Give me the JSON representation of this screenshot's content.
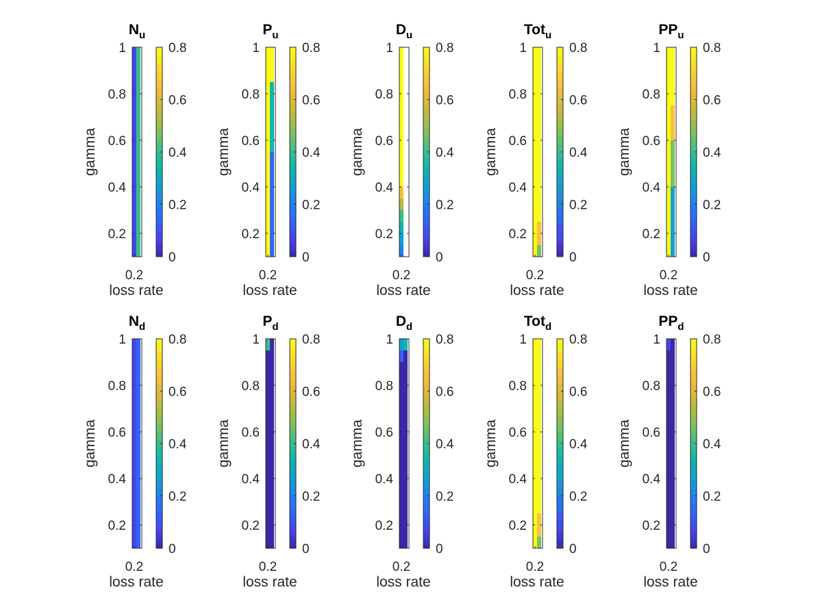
{
  "colormap": [
    "#3e26a8",
    "#4743f1",
    "#3263fd",
    "#1e82f1",
    "#12a0d3",
    "#0bb6b1",
    "#34c08b",
    "#78c25e",
    "#b3bd3f",
    "#e0b83b",
    "#fcc13b",
    "#f7e025",
    "#f9fb15"
  ],
  "chart_data": [
    {
      "type": "heatmap",
      "title_main": "N",
      "title_sub": "u",
      "xlabel": "loss rate",
      "ylabel": "gamma",
      "x_ticks": [
        "0.2"
      ],
      "y_ticks": [
        "0.2",
        "0.4",
        "0.6",
        "0.8",
        "1"
      ],
      "colorbar_ticks": [
        "0",
        "0.2",
        "0.4",
        "0.6",
        "0.8"
      ],
      "clim": [
        0,
        0.8
      ],
      "ylim": [
        0.1,
        1
      ],
      "columns": [
        {
          "x": 0.2,
          "cells": [
            {
              "y0": 0.1,
              "y1": 1,
              "v": 0.05
            }
          ]
        },
        {
          "x": 0.25,
          "cells": [
            {
              "y0": 0.1,
              "y1": 1,
              "v": 0.4
            }
          ]
        }
      ]
    },
    {
      "type": "heatmap",
      "title_main": "P",
      "title_sub": "u",
      "xlabel": "loss rate",
      "ylabel": "gamma",
      "x_ticks": [
        "0.2"
      ],
      "y_ticks": [
        "0.2",
        "0.4",
        "0.6",
        "0.8",
        "1"
      ],
      "colorbar_ticks": [
        "0",
        "0.2",
        "0.4",
        "0.6",
        "0.8"
      ],
      "clim": [
        0,
        0.8
      ],
      "ylim": [
        0.1,
        1
      ],
      "columns": [
        {
          "x": 0.2,
          "cells": [
            {
              "y0": 0.1,
              "y1": 1,
              "v": 0.8
            }
          ]
        },
        {
          "x": 0.25,
          "cells": [
            {
              "y0": 0.1,
              "y1": 0.55,
              "v": 0.15
            },
            {
              "y0": 0.55,
              "y1": 0.85,
              "v": 0.35
            },
            {
              "y0": 0.85,
              "y1": 1,
              "v": 0.8
            }
          ]
        }
      ]
    },
    {
      "type": "heatmap",
      "title_main": "D",
      "title_sub": "u",
      "xlabel": "loss rate",
      "ylabel": "gamma",
      "x_ticks": [
        "0.2"
      ],
      "y_ticks": [
        "0.2",
        "0.4",
        "0.6",
        "0.8",
        "1"
      ],
      "colorbar_ticks": [
        "0",
        "0.2",
        "0.4",
        "0.6",
        "0.8"
      ],
      "clim": [
        0,
        0.8
      ],
      "ylim": [
        0.1,
        1
      ],
      "columns": [
        {
          "x": 0.2,
          "cells": [
            {
              "y0": 0.1,
              "y1": 0.15,
              "v": 0.18
            },
            {
              "y0": 0.15,
              "y1": 0.2,
              "v": 0.25
            },
            {
              "y0": 0.2,
              "y1": 0.25,
              "v": 0.32
            },
            {
              "y0": 0.25,
              "y1": 0.3,
              "v": 0.42
            },
            {
              "y0": 0.3,
              "y1": 0.35,
              "v": 0.55
            },
            {
              "y0": 0.35,
              "y1": 0.4,
              "v": 0.65
            },
            {
              "y0": 0.4,
              "y1": 1,
              "v": 0.8
            }
          ]
        }
      ]
    },
    {
      "type": "heatmap",
      "title_main": "Tot",
      "title_sub": "u",
      "xlabel": "loss rate",
      "ylabel": "gamma",
      "x_ticks": [
        "0.2"
      ],
      "y_ticks": [
        "0.2",
        "0.4",
        "0.6",
        "0.8",
        "1"
      ],
      "colorbar_ticks": [
        "0",
        "0.2",
        "0.4",
        "0.6",
        "0.8"
      ],
      "clim": [
        0,
        0.8
      ],
      "ylim": [
        0.1,
        1
      ],
      "columns": [
        {
          "x": 0.2,
          "cells": [
            {
              "y0": 0.1,
              "y1": 1,
              "v": 0.8
            }
          ]
        },
        {
          "x": 0.25,
          "cells": [
            {
              "y0": 0.1,
              "y1": 0.15,
              "v": 0.45
            },
            {
              "y0": 0.15,
              "y1": 0.25,
              "v": 0.65
            },
            {
              "y0": 0.25,
              "y1": 1,
              "v": 0.8
            }
          ]
        }
      ]
    },
    {
      "type": "heatmap",
      "title_main": "PP",
      "title_sub": "u",
      "xlabel": "loss rate",
      "ylabel": "gamma",
      "x_ticks": [
        "0.2"
      ],
      "y_ticks": [
        "0.2",
        "0.4",
        "0.6",
        "0.8",
        "1"
      ],
      "colorbar_ticks": [
        "0",
        "0.2",
        "0.4",
        "0.6",
        "0.8"
      ],
      "clim": [
        0,
        0.8
      ],
      "ylim": [
        0.1,
        1
      ],
      "columns": [
        {
          "x": 0.2,
          "cells": [
            {
              "y0": 0.1,
              "y1": 1,
              "v": 0.8
            }
          ]
        },
        {
          "x": 0.25,
          "cells": [
            {
              "y0": 0.1,
              "y1": 0.4,
              "v": 0.3
            },
            {
              "y0": 0.4,
              "y1": 0.6,
              "v": 0.45
            },
            {
              "y0": 0.6,
              "y1": 0.75,
              "v": 0.65
            },
            {
              "y0": 0.75,
              "y1": 1,
              "v": 0.8
            }
          ]
        }
      ]
    },
    {
      "type": "heatmap",
      "title_main": "N",
      "title_sub": "d",
      "xlabel": "loss rate",
      "ylabel": "gamma",
      "x_ticks": [
        "0.2"
      ],
      "y_ticks": [
        "0.2",
        "0.4",
        "0.6",
        "0.8",
        "1"
      ],
      "colorbar_ticks": [
        "0",
        "0.2",
        "0.4",
        "0.6",
        "0.8"
      ],
      "clim": [
        0,
        0.8
      ],
      "ylim": [
        0.1,
        1
      ],
      "columns": [
        {
          "x": 0.2,
          "cells": [
            {
              "y0": 0.1,
              "y1": 1,
              "v": 0.05
            }
          ]
        },
        {
          "x": 0.25,
          "cells": [
            {
              "y0": 0.1,
              "y1": 1,
              "v": 0.1
            }
          ]
        }
      ]
    },
    {
      "type": "heatmap",
      "title_main": "P",
      "title_sub": "d",
      "xlabel": "loss rate",
      "ylabel": "gamma",
      "x_ticks": [
        "0.2"
      ],
      "y_ticks": [
        "0.2",
        "0.4",
        "0.6",
        "0.8",
        "1"
      ],
      "colorbar_ticks": [
        "0",
        "0.2",
        "0.4",
        "0.6",
        "0.8"
      ],
      "clim": [
        0,
        0.8
      ],
      "ylim": [
        0.1,
        1
      ],
      "columns": [
        {
          "x": 0.2,
          "cells": [
            {
              "y0": 0.1,
              "y1": 0.95,
              "v": 0.02
            },
            {
              "y0": 0.95,
              "y1": 1,
              "v": 0.4
            }
          ]
        },
        {
          "x": 0.25,
          "cells": [
            {
              "y0": 0.1,
              "y1": 1,
              "v": 0.02
            }
          ]
        }
      ]
    },
    {
      "type": "heatmap",
      "title_main": "D",
      "title_sub": "d",
      "xlabel": "loss rate",
      "ylabel": "gamma",
      "x_ticks": [
        "0.2"
      ],
      "y_ticks": [
        "0.2",
        "0.4",
        "0.6",
        "0.8",
        "1"
      ],
      "colorbar_ticks": [
        "0",
        "0.2",
        "0.4",
        "0.6",
        "0.8"
      ],
      "clim": [
        0,
        0.8
      ],
      "ylim": [
        0.1,
        1
      ],
      "columns": [
        {
          "x": 0.2,
          "cells": [
            {
              "y0": 0.1,
              "y1": 0.9,
              "v": 0.02
            },
            {
              "y0": 0.9,
              "y1": 0.95,
              "v": 0.1
            },
            {
              "y0": 0.95,
              "y1": 1,
              "v": 0.3
            }
          ]
        },
        {
          "x": 0.25,
          "cells": [
            {
              "y0": 0.1,
              "y1": 0.95,
              "v": 0.02
            },
            {
              "y0": 0.95,
              "y1": 1,
              "v": 0.35
            }
          ]
        }
      ]
    },
    {
      "type": "heatmap",
      "title_main": "Tot",
      "title_sub": "d",
      "xlabel": "loss rate",
      "ylabel": "gamma",
      "x_ticks": [
        "0.2"
      ],
      "y_ticks": [
        "0.2",
        "0.4",
        "0.6",
        "0.8",
        "1"
      ],
      "colorbar_ticks": [
        "0",
        "0.2",
        "0.4",
        "0.6",
        "0.8"
      ],
      "clim": [
        0,
        0.8
      ],
      "ylim": [
        0.1,
        1
      ],
      "columns": [
        {
          "x": 0.2,
          "cells": [
            {
              "y0": 0.1,
              "y1": 1,
              "v": 0.8
            }
          ]
        },
        {
          "x": 0.25,
          "cells": [
            {
              "y0": 0.1,
              "y1": 0.15,
              "v": 0.45
            },
            {
              "y0": 0.15,
              "y1": 0.25,
              "v": 0.65
            },
            {
              "y0": 0.25,
              "y1": 1,
              "v": 0.8
            }
          ]
        }
      ]
    },
    {
      "type": "heatmap",
      "title_main": "PP",
      "title_sub": "d",
      "xlabel": "loss rate",
      "ylabel": "gamma",
      "x_ticks": [
        "0.2"
      ],
      "y_ticks": [
        "0.2",
        "0.4",
        "0.6",
        "0.8",
        "1"
      ],
      "colorbar_ticks": [
        "0",
        "0.2",
        "0.4",
        "0.6",
        "0.8"
      ],
      "clim": [
        0,
        0.8
      ],
      "ylim": [
        0.1,
        1
      ],
      "columns": [
        {
          "x": 0.2,
          "cells": [
            {
              "y0": 0.1,
              "y1": 0.95,
              "v": 0.02
            },
            {
              "y0": 0.95,
              "y1": 1,
              "v": 0.08
            }
          ]
        },
        {
          "x": 0.25,
          "cells": [
            {
              "y0": 0.1,
              "y1": 1,
              "v": 0.02
            }
          ]
        }
      ]
    }
  ]
}
